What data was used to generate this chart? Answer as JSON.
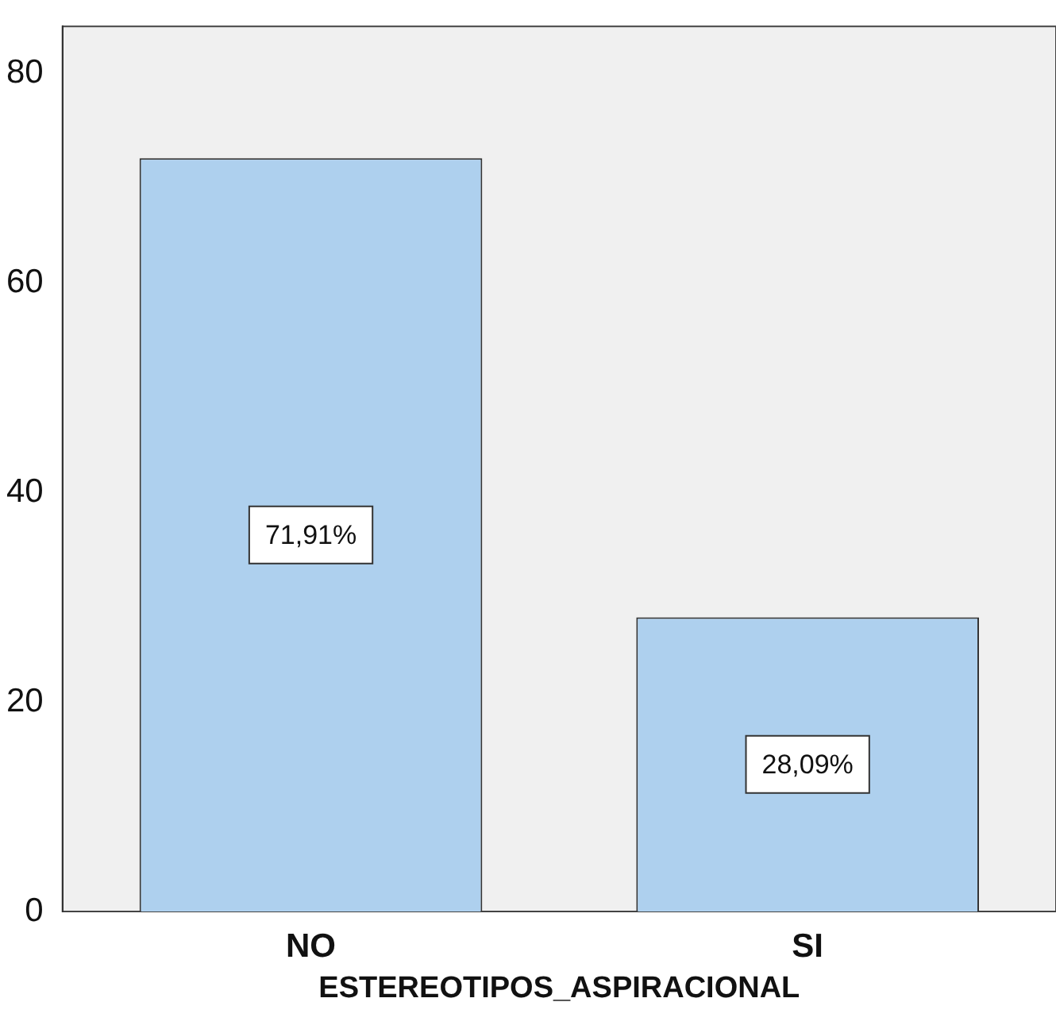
{
  "chart_data": {
    "type": "bar",
    "xlabel": "ESTEREOTIPOS_ASPIRACIONAL",
    "categories": [
      "NO",
      "SI"
    ],
    "values": [
      71.91,
      28.09
    ],
    "color": "#aed0ee",
    "ylim": [
      0,
      84.5
    ],
    "yticks": [
      0,
      20,
      40,
      60,
      80
    ],
    "value_labels": [
      "71,91%",
      "28,09%"
    ]
  }
}
